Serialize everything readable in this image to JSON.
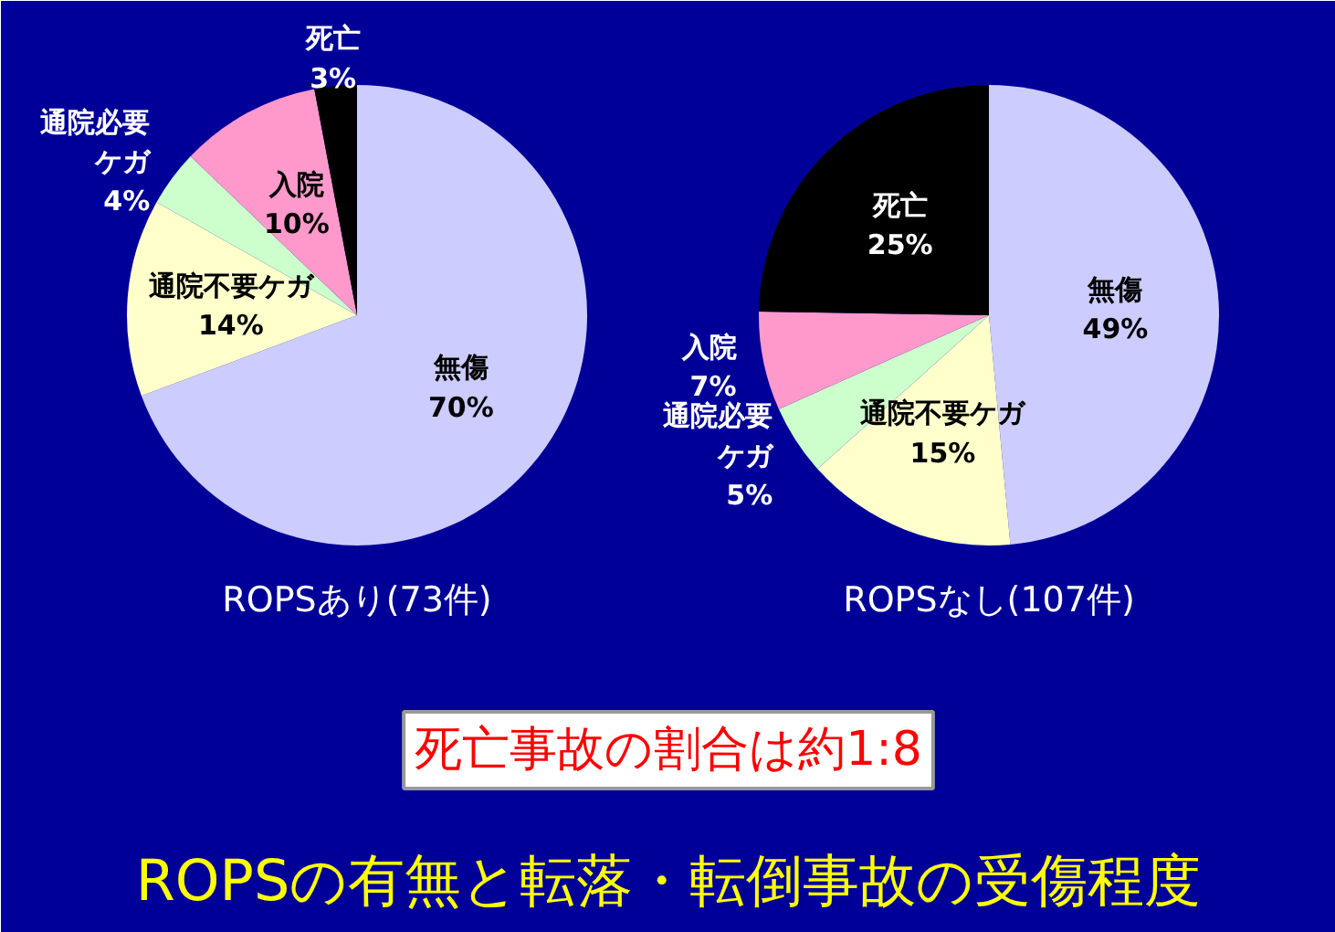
{
  "chart_data": [
    {
      "type": "pie",
      "title": "ROPSあり(73件)",
      "categories": [
        "無傷",
        "通院不要ケガ",
        "通院必要ケガ",
        "入院",
        "死亡"
      ],
      "values": [
        70,
        14,
        4,
        10,
        3
      ],
      "value_labels": [
        "70%",
        "14%",
        "4%",
        "10%",
        "3%"
      ],
      "colors": [
        "#ccccff",
        "#ffffcc",
        "#ccffcc",
        "#ff99cc",
        "#000000"
      ]
    },
    {
      "type": "pie",
      "title": "ROPSなし(107件)",
      "categories": [
        "無傷",
        "通院不要ケガ",
        "通院必要ケガ",
        "入院",
        "死亡"
      ],
      "values": [
        49,
        15,
        5,
        7,
        25
      ],
      "value_labels": [
        "49%",
        "15%",
        "5%",
        "7%",
        "25%"
      ],
      "colors": [
        "#ccccff",
        "#ffffcc",
        "#ccffcc",
        "#ff99cc",
        "#000000"
      ]
    },
    {
      "type": "other",
      "title": "ROPSの有無と転落・転倒事故の受傷程度",
      "annotations": [
        "死亡事故の割合は約1:8"
      ]
    }
  ]
}
